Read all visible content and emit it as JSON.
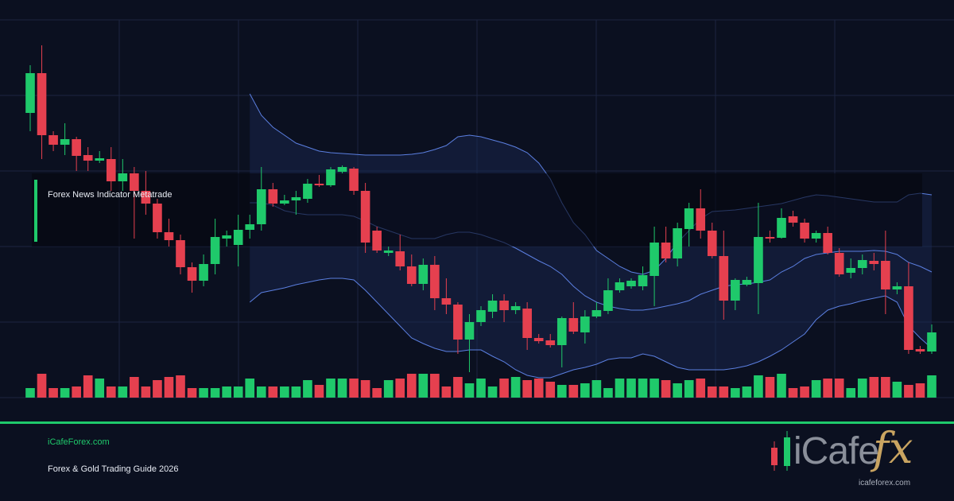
{
  "banner": {
    "title": "Forex News Indicator Metatrade",
    "site": "iCafeForex.com",
    "subtitle": "Forex & Gold Trading Guide 2026"
  },
  "logo": {
    "brand": "iCafe",
    "accent": "fx",
    "url": "icafeforex.com"
  },
  "chart_data": {
    "type": "candlestick",
    "ylim": [
      0,
      475
    ],
    "up_color": "#1fc96b",
    "down_color": "#e5404f",
    "band_color": "#5b7fe0",
    "open": [
      358,
      408,
      330,
      318,
      325,
      305,
      298,
      300,
      272,
      282,
      260,
      244,
      208,
      198,
      164,
      147,
      168,
      200,
      192,
      211,
      218,
      262,
      244,
      248,
      250,
      269,
      267,
      284,
      288,
      260,
      210,
      182,
      184,
      165,
      143,
      167,
      125,
      117,
      73,
      95,
      108,
      122,
      110,
      112,
      75,
      72,
      66,
      100,
      82,
      102,
      109,
      135,
      140,
      140,
      153,
      195,
      175,
      212,
      238,
      210,
      178,
      122,
      142,
      144,
      202,
      201,
      228,
      220,
      200,
      207,
      182,
      157,
      163,
      172,
      172,
      136,
      140,
      61,
      58
    ],
    "high": [
      418,
      443,
      335,
      345,
      328,
      315,
      310,
      315,
      300,
      290,
      285,
      250,
      225,
      205,
      170,
      180,
      225,
      210,
      230,
      230,
      290,
      270,
      255,
      260,
      275,
      280,
      290,
      292,
      290,
      270,
      215,
      190,
      205,
      180,
      175,
      178,
      150,
      120,
      105,
      115,
      130,
      130,
      120,
      120,
      80,
      80,
      102,
      120,
      110,
      120,
      150,
      150,
      150,
      165,
      215,
      215,
      220,
      245,
      262,
      220,
      210,
      150,
      152,
      245,
      210,
      238,
      235,
      225,
      210,
      215,
      188,
      175,
      180,
      182,
      210,
      145,
      170,
      65,
      92
    ],
    "low": [
      335,
      300,
      310,
      305,
      285,
      285,
      295,
      260,
      260,
      200,
      230,
      200,
      190,
      155,
      132,
      140,
      155,
      190,
      165,
      200,
      210,
      240,
      242,
      230,
      245,
      265,
      265,
      282,
      255,
      182,
      182,
      178,
      160,
      140,
      135,
      110,
      105,
      55,
      32,
      90,
      100,
      95,
      105,
      60,
      68,
      63,
      38,
      80,
      68,
      100,
      105,
      132,
      137,
      135,
      115,
      170,
      165,
      190,
      200,
      175,
      98,
      110,
      140,
      105,
      195,
      200,
      215,
      195,
      195,
      180,
      152,
      150,
      155,
      160,
      105,
      130,
      55,
      55,
      55
    ],
    "close": [
      408,
      330,
      318,
      325,
      304,
      298,
      301,
      272,
      282,
      260,
      244,
      208,
      198,
      164,
      147,
      168,
      202,
      204,
      211,
      218,
      262,
      244,
      248,
      252,
      269,
      267,
      287,
      290,
      260,
      195,
      185,
      185,
      165,
      143,
      167,
      125,
      117,
      73,
      95,
      110,
      122,
      110,
      115,
      75,
      71,
      66,
      100,
      83,
      102,
      110,
      135,
      145,
      147,
      154,
      195,
      175,
      213,
      238,
      210,
      178,
      122,
      148,
      148,
      202,
      200,
      226,
      220,
      200,
      207,
      182,
      155,
      163,
      173,
      168,
      136,
      140,
      60,
      58,
      82
    ],
    "volume": [
      12,
      30,
      12,
      12,
      14,
      28,
      24,
      14,
      14,
      26,
      14,
      22,
      26,
      28,
      12,
      12,
      12,
      14,
      14,
      24,
      14,
      14,
      14,
      14,
      22,
      16,
      24,
      24,
      24,
      22,
      12,
      22,
      24,
      30,
      30,
      30,
      14,
      26,
      18,
      24,
      14,
      24,
      26,
      22,
      24,
      20,
      16,
      16,
      18,
      22,
      12,
      24,
      24,
      24,
      24,
      22,
      18,
      22,
      24,
      14,
      14,
      12,
      14,
      28,
      26,
      30,
      12,
      14,
      22,
      24,
      24,
      12,
      24,
      26,
      26,
      20,
      16,
      18,
      28
    ],
    "bollinger": {
      "upper": [
        null,
        null,
        null,
        null,
        null,
        null,
        null,
        null,
        null,
        null,
        null,
        null,
        null,
        null,
        null,
        null,
        null,
        null,
        null,
        382,
        355,
        340,
        330,
        320,
        315,
        310,
        308,
        307,
        306,
        305,
        305,
        305,
        305,
        306,
        308,
        312,
        317,
        328,
        330,
        328,
        324,
        320,
        315,
        308,
        295,
        275,
        245,
        220,
        205,
        185,
        175,
        165,
        158,
        155,
        160,
        175,
        195,
        210,
        225,
        234,
        235,
        236,
        238,
        240,
        242,
        244,
        248,
        252,
        255,
        254,
        252,
        250,
        248,
        246,
        246,
        246,
        255,
        257,
        255
      ],
      "middle": [
        null,
        null,
        null,
        null,
        null,
        null,
        null,
        null,
        null,
        null,
        null,
        null,
        null,
        null,
        null,
        null,
        null,
        null,
        null,
        245,
        245,
        242,
        235,
        232,
        230,
        230,
        230,
        230,
        228,
        222,
        215,
        210,
        205,
        200,
        200,
        200,
        205,
        208,
        208,
        205,
        200,
        195,
        188,
        180,
        172,
        165,
        155,
        140,
        128,
        120,
        115,
        112,
        110,
        110,
        112,
        115,
        118,
        122,
        130,
        135,
        140,
        142,
        143,
        145,
        148,
        158,
        165,
        175,
        180,
        182,
        184,
        184,
        184,
        185,
        184,
        180,
        170,
        165,
        158
      ],
      "lower": [
        null,
        null,
        null,
        null,
        null,
        null,
        null,
        null,
        null,
        null,
        null,
        null,
        null,
        null,
        null,
        null,
        null,
        null,
        null,
        120,
        132,
        135,
        138,
        142,
        145,
        148,
        150,
        150,
        148,
        135,
        120,
        105,
        90,
        75,
        68,
        62,
        58,
        58,
        60,
        60,
        52,
        45,
        35,
        28,
        25,
        25,
        30,
        35,
        38,
        42,
        48,
        50,
        50,
        55,
        52,
        45,
        38,
        35,
        35,
        35,
        35,
        37,
        40,
        45,
        52,
        60,
        70,
        80,
        98,
        110,
        115,
        118,
        122,
        125,
        128,
        120,
        90,
        75,
        62
      ]
    }
  }
}
